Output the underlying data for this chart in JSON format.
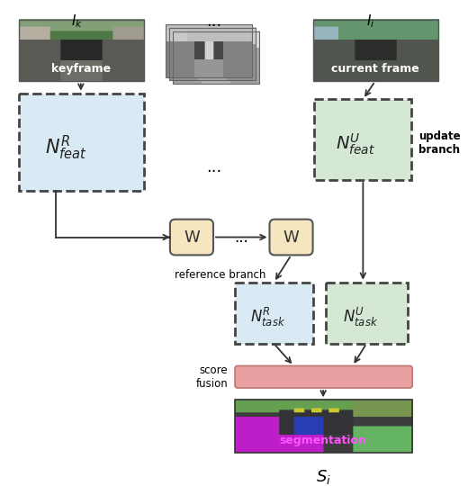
{
  "bg_color": "#ffffff",
  "NR_feat_color": "#daeaf5",
  "NU_feat_color": "#d5e8d4",
  "W_color": "#f5e6c0",
  "NR_task_color": "#daeaf5",
  "NU_task_color": "#d5e8d4",
  "fusion_color": "#e8a0a0",
  "arrow_color": "#333333",
  "keyframe_label": "I_k",
  "currentframe_label": "I_i",
  "keyframe_text": "keyframe",
  "currentframe_text": "current frame",
  "ref_branch_label": "reference branch",
  "update_branch_label": "update\nbranch",
  "score_fusion_label": "score\nfusion",
  "segmentation_text": "segmentation",
  "Si_label": "S_i"
}
